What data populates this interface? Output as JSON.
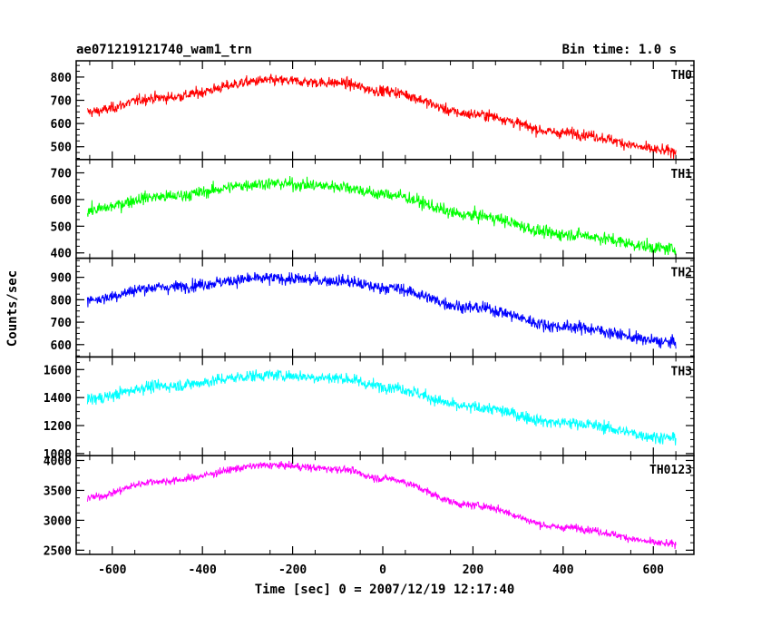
{
  "chart_data": {
    "type": "line",
    "title": "ae071219121740_wam1_trn",
    "subtitle": "Bin time: 1.0 s",
    "xlabel": "Time [sec] 0 = 2007/12/19 12:17:40",
    "ylabel": "Counts/sec",
    "xlim": [
      -680,
      690
    ],
    "x_ticks": [
      -600,
      -400,
      -200,
      0,
      200,
      400,
      600
    ],
    "x_range": [
      -655,
      650
    ],
    "grid": false,
    "panels": [
      {
        "name": "TH0",
        "color": "#ff0000",
        "ylim": [
          445,
          870
        ],
        "y_ticks": [
          500,
          600,
          700,
          800
        ],
        "trend": {
          "x": [
            -655,
            -500,
            -250,
            -100,
            0,
            200,
            400,
            650
          ],
          "y": [
            650,
            710,
            785,
            775,
            740,
            640,
            560,
            480
          ]
        },
        "noise": 30
      },
      {
        "name": "TH1",
        "color": "#00ff00",
        "ylim": [
          380,
          750
        ],
        "y_ticks": [
          400,
          500,
          600,
          700
        ],
        "trend": {
          "x": [
            -655,
            -500,
            -250,
            -100,
            0,
            200,
            400,
            650
          ],
          "y": [
            560,
            610,
            660,
            650,
            620,
            540,
            470,
            415
          ]
        },
        "noise": 30
      },
      {
        "name": "TH2",
        "color": "#0000ff",
        "ylim": [
          545,
          985
        ],
        "y_ticks": [
          600,
          700,
          800,
          900
        ],
        "trend": {
          "x": [
            -655,
            -500,
            -250,
            -100,
            0,
            200,
            400,
            650
          ],
          "y": [
            800,
            855,
            895,
            885,
            855,
            765,
            680,
            610
          ]
        },
        "noise": 35
      },
      {
        "name": "TH3",
        "color": "#00ffff",
        "ylim": [
          985,
          1690
        ],
        "y_ticks": [
          1000,
          1200,
          1400,
          1600
        ],
        "trend": {
          "x": [
            -655,
            -500,
            -250,
            -100,
            0,
            200,
            400,
            650
          ],
          "y": [
            1390,
            1480,
            1560,
            1540,
            1480,
            1330,
            1220,
            1110
          ]
        },
        "noise": 55
      },
      {
        "name": "TH0123",
        "color": "#ff00ff",
        "ylim": [
          2430,
          4080
        ],
        "y_ticks": [
          2500,
          3000,
          3500,
          4000
        ],
        "trend": {
          "x": [
            -655,
            -500,
            -250,
            -100,
            0,
            200,
            400,
            650
          ],
          "y": [
            3380,
            3650,
            3920,
            3860,
            3700,
            3250,
            2880,
            2600
          ]
        },
        "noise": 80
      }
    ]
  }
}
